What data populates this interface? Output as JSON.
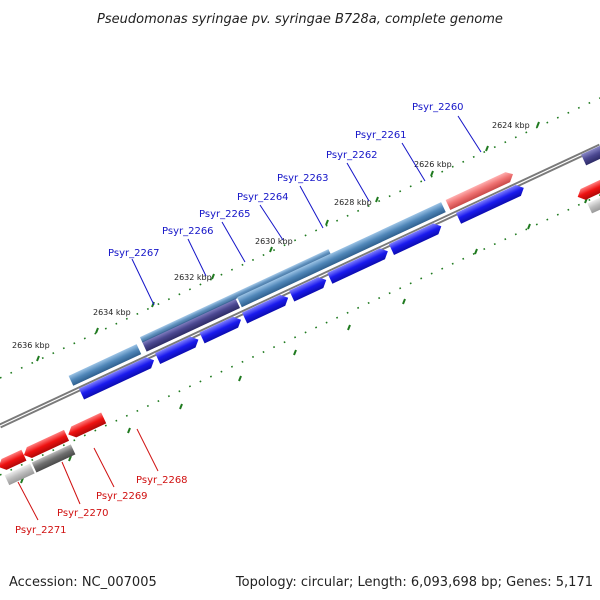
{
  "title": "Pseudomonas syringae pv. syringae B728a, complete genome",
  "footer": {
    "accession": "Accession: NC_007005",
    "summary": "Topology: circular; Length: 6,093,698 bp; Genes: 5,171"
  },
  "colors": {
    "forward_gene": "#1a1aee",
    "forward_highlight": "#4f86b8",
    "forward_dark": "#4a4790",
    "reverse_gene": "#ee1111",
    "reverse_light": "#ee7070",
    "gray_gene": "#6e6e6e",
    "backbone": "#7a7a7a",
    "tick": "#1f7a1f"
  },
  "ticks": [
    "2624 kbp",
    "2626 kbp",
    "2628 kbp",
    "2630 kbp",
    "2632 kbp",
    "2634 kbp",
    "2636 kbp"
  ],
  "forward_genes": [
    "Psyr_2260",
    "Psyr_2261",
    "Psyr_2262",
    "Psyr_2263",
    "Psyr_2264",
    "Psyr_2265",
    "Psyr_2266",
    "Psyr_2267"
  ],
  "reverse_genes": [
    "Psyr_2268",
    "Psyr_2269",
    "Psyr_2270",
    "Psyr_2271"
  ]
}
